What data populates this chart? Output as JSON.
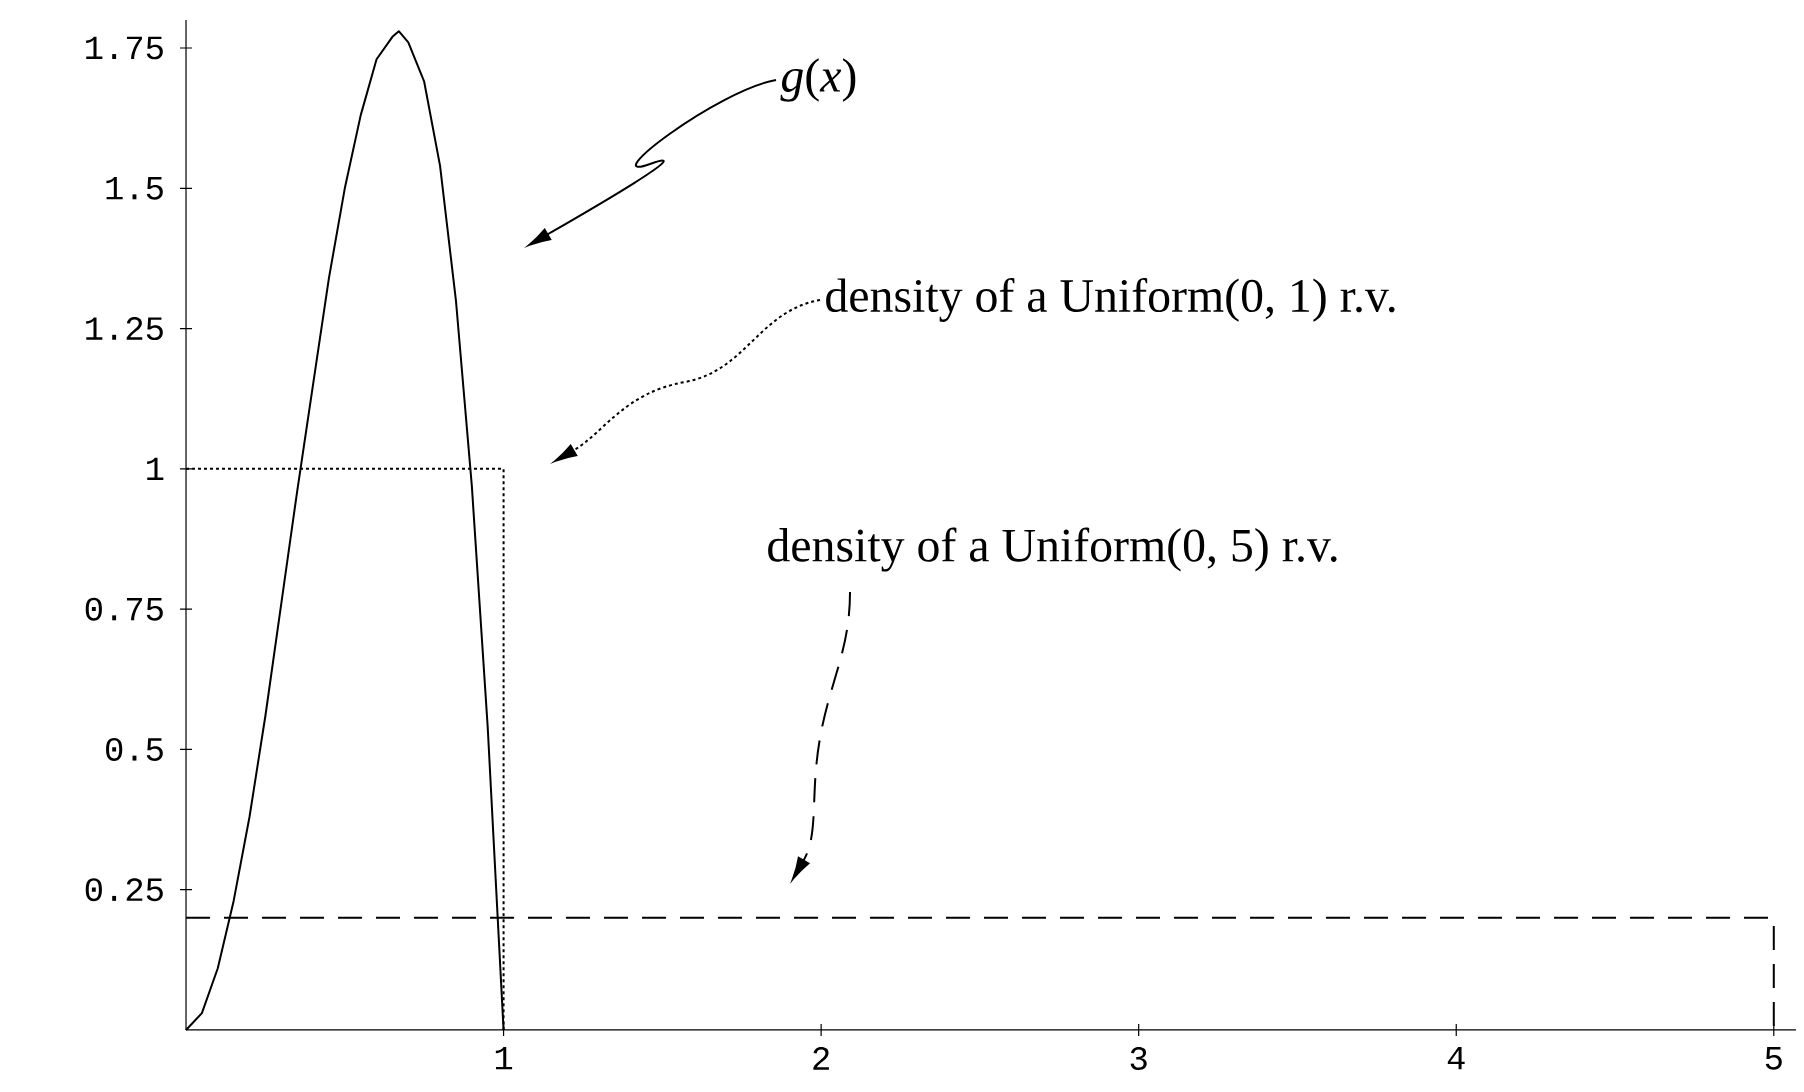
{
  "chart_data": {
    "type": "line",
    "xlim": [
      0,
      5.07
    ],
    "ylim": [
      0,
      1.8
    ],
    "xticks": [
      1,
      2,
      3,
      4,
      5
    ],
    "yticks": [
      0.25,
      {
        "value": 0.5,
        "label": "0.5"
      },
      0.75,
      {
        "value": 1,
        "label": "1"
      },
      1.25,
      {
        "value": 1.5,
        "label": "1.5"
      },
      1.75
    ],
    "marker": "none",
    "series": [
      {
        "color": "#000000",
        "line_style": "solid",
        "x": [
          0,
          0.05,
          0.1,
          0.15,
          0.2,
          0.25,
          0.3,
          0.35,
          0.4,
          0.45,
          0.5,
          0.55,
          0.6,
          0.65,
          0.67,
          0.7,
          0.75,
          0.8,
          0.85,
          0.9,
          0.95,
          1
        ],
        "values": [
          0,
          0.03,
          0.11,
          0.23,
          0.38,
          0.56,
          0.76,
          0.96,
          1.15,
          1.34,
          1.5,
          1.63,
          1.73,
          1.77,
          1.78,
          1.76,
          1.69,
          1.54,
          1.3,
          0.97,
          0.54,
          0
        ]
      },
      {
        "color": "#000000",
        "line_style": "dotted",
        "x": [
          0,
          1,
          1
        ],
        "values": [
          1,
          1,
          0
        ]
      },
      {
        "color": "#000000",
        "line_style": "dashed",
        "x": [
          0,
          5,
          5
        ],
        "values": [
          0.2,
          0.2,
          0
        ]
      }
    ],
    "annotations": [
      "*g*(*x*)",
      "density of a Uniform(0, 1) r.v.",
      "density of a Uniform(0, 5) r.v."
    ]
  }
}
